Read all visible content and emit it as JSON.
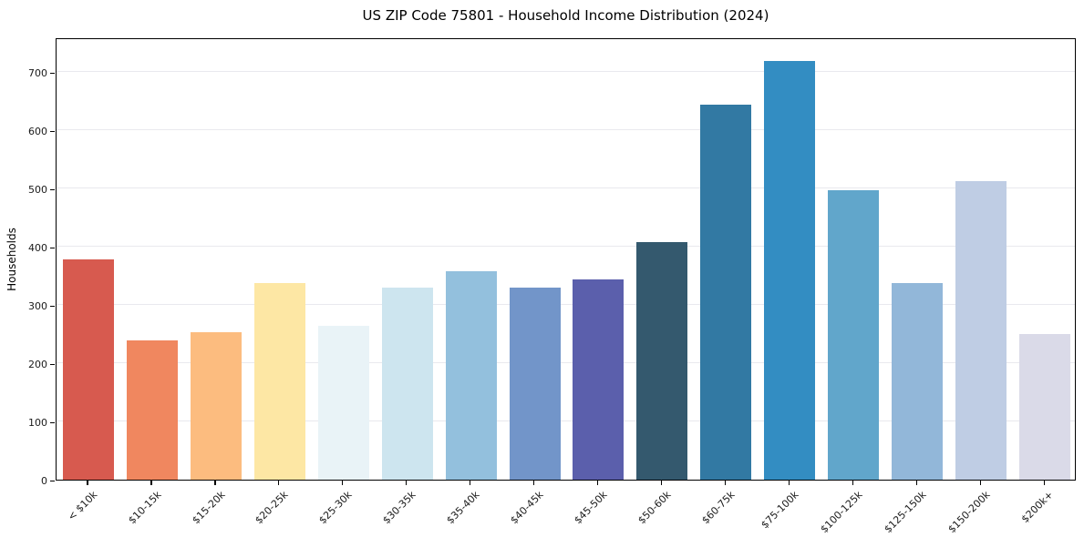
{
  "chart_data": {
    "type": "bar",
    "title": "US ZIP Code 75801 - Household Income Distribution (2024)",
    "ylabel": "Households",
    "xlabel": "",
    "legend": null,
    "grid": "horizontal-only",
    "categories": [
      "< $10k",
      "$10-15k",
      "$15-20k",
      "$20-25k",
      "$25-30k",
      "$30-35k",
      "$35-40k",
      "$40-45k",
      "$45-50k",
      "$50-60k",
      "$60-75k",
      "$75-100k",
      "$100-125k",
      "$125-150k",
      "$150-200k",
      "$200k+"
    ],
    "values": [
      378,
      240,
      254,
      338,
      265,
      330,
      358,
      330,
      344,
      408,
      645,
      719,
      497,
      338,
      513,
      250
    ],
    "bar_colors": [
      "#d75a4f",
      "#f0875f",
      "#fcbc7f",
      "#fde7a4",
      "#e9f3f7",
      "#cde5ef",
      "#93c0dd",
      "#7295c9",
      "#5b5fac",
      "#34596e",
      "#3279a3",
      "#338dc2",
      "#61a6cb",
      "#92b7d9",
      "#bfcde4",
      "#dadae8"
    ],
    "yticks": [
      0,
      100,
      200,
      300,
      400,
      500,
      600,
      700
    ],
    "ylim": [
      0,
      760
    ],
    "colors": {
      "background": "#ffffff",
      "spine": "#000000",
      "gridline": "#e9e9ee",
      "tick_text": "#1a1a1a",
      "title_text": "#000000"
    }
  }
}
